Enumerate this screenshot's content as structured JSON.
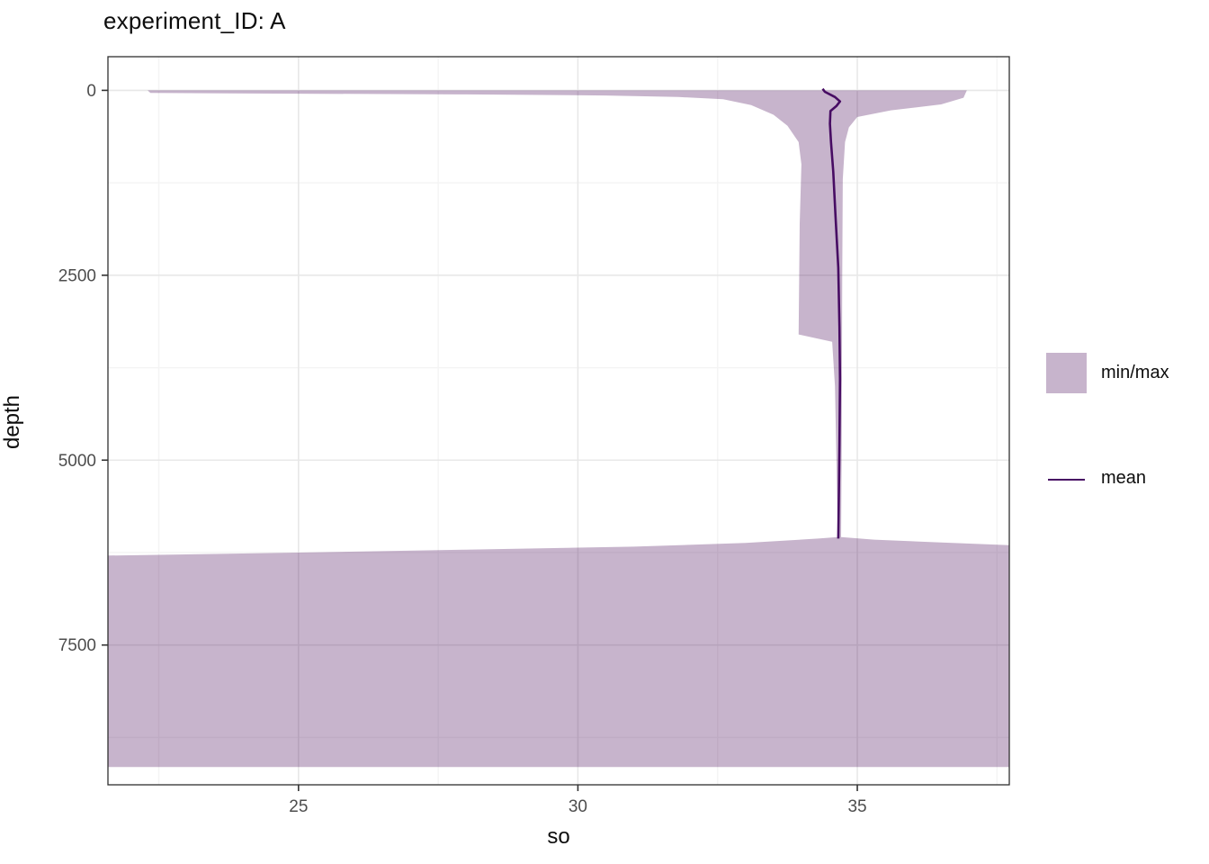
{
  "title": "experiment_ID: A",
  "axes": {
    "x": {
      "label": "so",
      "domain": [
        21.59,
        37.72
      ],
      "ticks": [
        25,
        30,
        35
      ],
      "minor_ticks": [
        22.5,
        27.5,
        32.5,
        37.5
      ]
    },
    "y": {
      "label": "depth",
      "domain": [
        -455,
        9390
      ],
      "reversed": true,
      "ticks": [
        0,
        2500,
        5000,
        7500
      ],
      "minor_ticks": [
        1250,
        3750,
        6250,
        8750
      ]
    }
  },
  "legend": {
    "items": [
      {
        "label": "min/max",
        "key": "fill-swatch"
      },
      {
        "label": "mean",
        "key": "line-swatch"
      }
    ]
  },
  "colors": {
    "ribbon_fill": "rgba(68,8,86,0.30)",
    "mean_line": "#470c63",
    "grid_major": "#e8e8e8",
    "grid_minor": "#f4f4f4",
    "panel_border": "#2f2f2f",
    "tick_mark": "#333333",
    "tick_label": "#4d4d4d",
    "text": "#0d0d0d",
    "panel_bg": "#ffffff"
  },
  "chart_data": {
    "type": "area",
    "title": "experiment_ID: A",
    "xlabel": "so",
    "ylabel": "depth",
    "xlim": [
      21.59,
      37.72
    ],
    "ylim": [
      9390,
      -455
    ],
    "grid": true,
    "legend_position": "right",
    "series": [
      {
        "name": "min/max",
        "type": "ribbon",
        "description": "min and max of so as a function of depth; boundary points as [so, depth]",
        "min_boundary": [
          [
            22.3,
            0
          ],
          [
            22.35,
            35
          ],
          [
            25.0,
            45
          ],
          [
            28.0,
            55
          ],
          [
            30.5,
            70
          ],
          [
            31.8,
            90
          ],
          [
            32.6,
            120
          ],
          [
            33.1,
            200
          ],
          [
            33.5,
            330
          ],
          [
            33.75,
            480
          ],
          [
            33.95,
            700
          ],
          [
            34.0,
            1000
          ],
          [
            33.97,
            1800
          ],
          [
            33.95,
            3300
          ],
          [
            34.55,
            3400
          ],
          [
            34.6,
            4000
          ],
          [
            34.63,
            5100
          ],
          [
            34.65,
            6040
          ],
          [
            34.3,
            6060
          ],
          [
            33.0,
            6120
          ],
          [
            31.0,
            6170
          ],
          [
            28.0,
            6210
          ],
          [
            25.0,
            6250
          ],
          [
            21.59,
            6290
          ],
          [
            21.59,
            9150
          ]
        ],
        "max_boundary": [
          [
            36.96,
            0
          ],
          [
            36.9,
            100
          ],
          [
            36.5,
            190
          ],
          [
            35.6,
            270
          ],
          [
            35.0,
            360
          ],
          [
            34.85,
            500
          ],
          [
            34.78,
            700
          ],
          [
            34.74,
            1200
          ],
          [
            34.73,
            2500
          ],
          [
            34.72,
            5000
          ],
          [
            34.71,
            6040
          ],
          [
            35.3,
            6075
          ],
          [
            36.4,
            6110
          ],
          [
            37.72,
            6150
          ],
          [
            37.72,
            9150
          ]
        ]
      },
      {
        "name": "mean",
        "type": "line",
        "points": [
          [
            34.38,
            -20
          ],
          [
            34.42,
            20
          ],
          [
            34.6,
            90
          ],
          [
            34.69,
            150
          ],
          [
            34.63,
            210
          ],
          [
            34.52,
            280
          ],
          [
            34.51,
            450
          ],
          [
            34.53,
            700
          ],
          [
            34.57,
            1100
          ],
          [
            34.61,
            1700
          ],
          [
            34.66,
            2400
          ],
          [
            34.68,
            3200
          ],
          [
            34.69,
            3900
          ],
          [
            34.68,
            4800
          ],
          [
            34.67,
            5500
          ],
          [
            34.66,
            6060
          ]
        ]
      }
    ]
  }
}
